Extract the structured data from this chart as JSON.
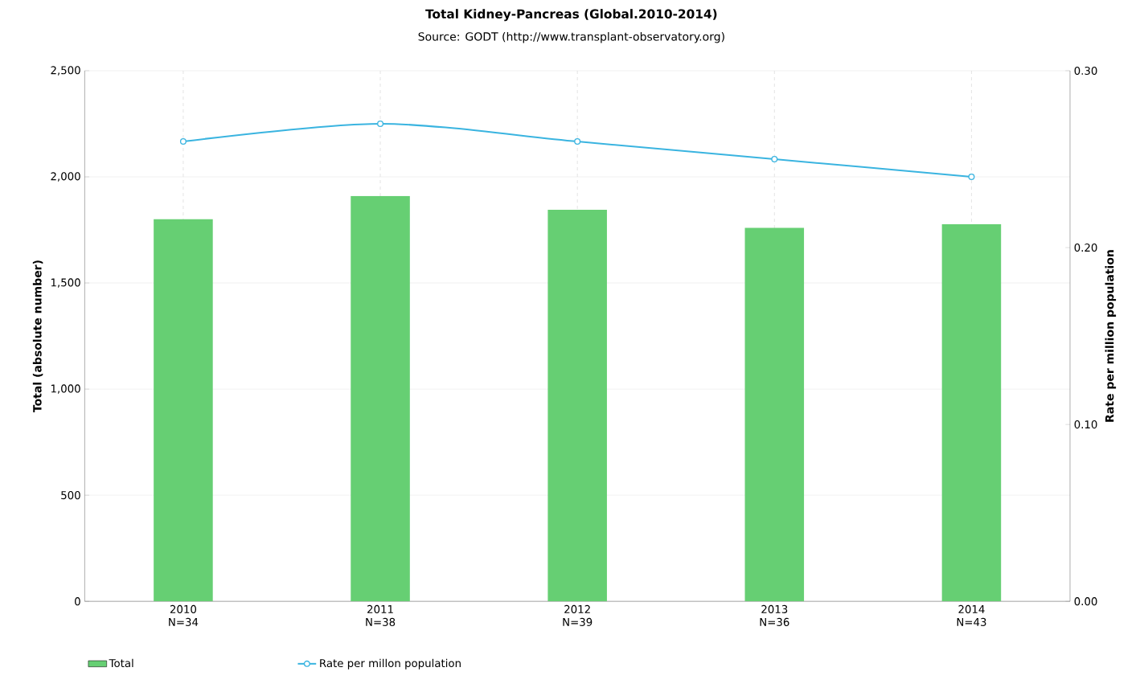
{
  "chart_data": {
    "type": "bar",
    "title": "Total Kidney-Pancreas (Global.2010-2014)",
    "subtitle": "Source: GODT (http://www.transplant-observatory.org)",
    "ylabel": "Total (absolute number)",
    "y2label": "Rate per million population",
    "categories": [
      "2010 N=34",
      "2011 N=38",
      "2012 N=39",
      "2013 N=36",
      "2014 N=43"
    ],
    "series": [
      {
        "name": "Total",
        "color": "#66cf73",
        "values": [
          1800,
          1910,
          1845,
          1760,
          1777
        ]
      },
      {
        "name": "Rate per millon population",
        "type": "line",
        "axis": "y2",
        "color": "#3ab4e0",
        "values": [
          0.26,
          0.27,
          0.26,
          0.25,
          0.24
        ]
      }
    ],
    "ylim": [
      0,
      2500
    ],
    "yticks": [
      {
        "value": 0,
        "label": "0"
      },
      {
        "value": 500,
        "label": "500"
      },
      {
        "value": 1000,
        "label": "1,000"
      },
      {
        "value": 1500,
        "label": "1,500"
      },
      {
        "value": 2000,
        "label": "2,000"
      },
      {
        "value": 2500,
        "label": "2,500"
      }
    ],
    "y2lim": [
      0,
      0.3
    ],
    "y2ticks": [
      {
        "value": 0,
        "label": "0.00"
      },
      {
        "value": 0.1,
        "label": "0.10"
      },
      {
        "value": 0.2,
        "label": "0.20"
      },
      {
        "value": 0.3,
        "label": "0.30"
      }
    ],
    "grid": true,
    "legend": "bottom",
    "marker": "circle",
    "line_style": "solid"
  }
}
